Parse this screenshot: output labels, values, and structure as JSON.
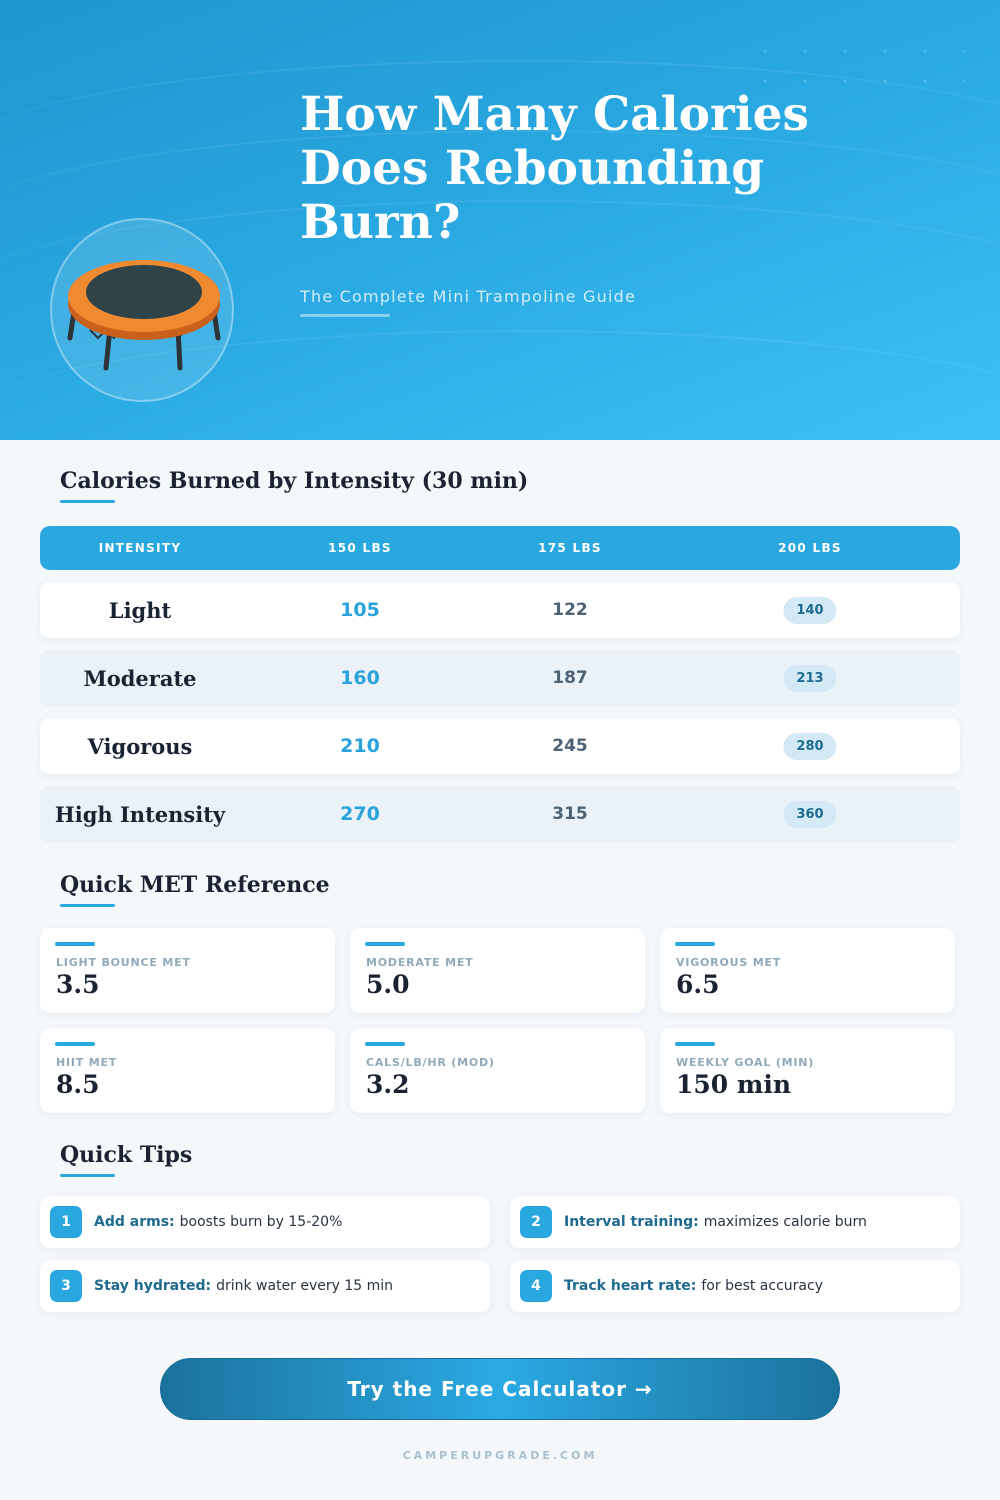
{
  "hero": {
    "title": "How Many Calories Does Rebounding Burn?",
    "subtitle": "The Complete Mini Trampoline Guide",
    "illustration": "mini-trampoline-icon"
  },
  "calories_table": {
    "heading": "Calories Burned by Intensity (30 min)",
    "columns": [
      "INTENSITY",
      "150 LBS",
      "175 LBS",
      "200 LBS"
    ],
    "rows": [
      {
        "intensity": "Light",
        "lbs150": "105",
        "lbs175": "122",
        "lbs200": "140"
      },
      {
        "intensity": "Moderate",
        "lbs150": "160",
        "lbs175": "187",
        "lbs200": "213"
      },
      {
        "intensity": "Vigorous",
        "lbs150": "210",
        "lbs175": "245",
        "lbs200": "280"
      },
      {
        "intensity": "High Intensity",
        "lbs150": "270",
        "lbs175": "315",
        "lbs200": "360"
      }
    ]
  },
  "met_reference": {
    "heading": "Quick MET Reference",
    "cards": [
      {
        "label": "LIGHT BOUNCE MET",
        "value": "3.5"
      },
      {
        "label": "MODERATE MET",
        "value": "5.0"
      },
      {
        "label": "VIGOROUS MET",
        "value": "6.5"
      },
      {
        "label": "HIIT MET",
        "value": "8.5"
      },
      {
        "label": "CALS/LB/HR (MOD)",
        "value": "3.2"
      },
      {
        "label": "WEEKLY GOAL (MIN)",
        "value": "150 min"
      }
    ]
  },
  "tips": {
    "heading": "Quick Tips",
    "items": [
      {
        "num": "1",
        "bold": "Add arms:",
        "text": "boosts burn by 15-20%"
      },
      {
        "num": "2",
        "bold": "Interval training:",
        "text": "maximizes calorie burn"
      },
      {
        "num": "3",
        "bold": "Stay hydrated:",
        "text": "drink water every 15 min"
      },
      {
        "num": "4",
        "bold": "Track heart rate:",
        "text": "for best accuracy"
      }
    ]
  },
  "cta": {
    "label": "Try the Free Calculator →"
  },
  "footer": {
    "site": "CAMPERUPGRADE.COM"
  },
  "colors": {
    "accent": "#29a8e0",
    "dark_accent": "#1e6a90",
    "heading": "#1b2333",
    "orange": "#f08a30"
  }
}
